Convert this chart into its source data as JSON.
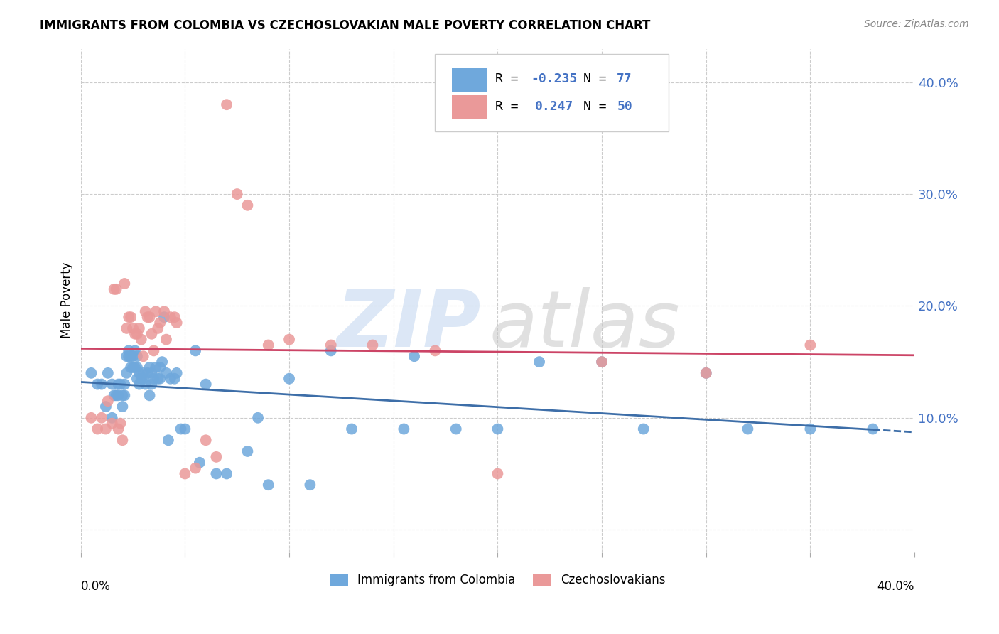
{
  "title": "IMMIGRANTS FROM COLOMBIA VS CZECHOSLOVAKIAN MALE POVERTY CORRELATION CHART",
  "source": "Source: ZipAtlas.com",
  "ylabel": "Male Poverty",
  "yticks": [
    0.0,
    0.1,
    0.2,
    0.3,
    0.4
  ],
  "ytick_labels": [
    "",
    "10.0%",
    "20.0%",
    "30.0%",
    "40.0%"
  ],
  "xlim": [
    0.0,
    0.4
  ],
  "ylim": [
    -0.02,
    0.43
  ],
  "colombia_R": -0.235,
  "colombia_N": 77,
  "czech_R": 0.247,
  "czech_N": 50,
  "colombia_color": "#6fa8dc",
  "czech_color": "#ea9999",
  "colombia_line_color": "#3d6ea8",
  "czech_line_color": "#cc4466",
  "legend_text_color": "#4472c4",
  "right_axis_color": "#4472c4",
  "colombia_points_x": [
    0.005,
    0.008,
    0.01,
    0.012,
    0.013,
    0.015,
    0.015,
    0.016,
    0.017,
    0.018,
    0.018,
    0.019,
    0.02,
    0.02,
    0.021,
    0.021,
    0.022,
    0.022,
    0.023,
    0.023,
    0.024,
    0.024,
    0.025,
    0.025,
    0.026,
    0.026,
    0.027,
    0.027,
    0.027,
    0.028,
    0.028,
    0.029,
    0.03,
    0.03,
    0.031,
    0.032,
    0.033,
    0.033,
    0.034,
    0.034,
    0.035,
    0.036,
    0.037,
    0.038,
    0.038,
    0.039,
    0.04,
    0.041,
    0.042,
    0.043,
    0.045,
    0.046,
    0.048,
    0.05,
    0.055,
    0.057,
    0.06,
    0.065,
    0.07,
    0.08,
    0.085,
    0.09,
    0.1,
    0.11,
    0.12,
    0.13,
    0.155,
    0.16,
    0.18,
    0.2,
    0.22,
    0.25,
    0.27,
    0.3,
    0.32,
    0.35,
    0.38
  ],
  "colombia_points_y": [
    0.14,
    0.13,
    0.13,
    0.11,
    0.14,
    0.1,
    0.13,
    0.12,
    0.12,
    0.13,
    0.12,
    0.13,
    0.12,
    0.11,
    0.12,
    0.13,
    0.155,
    0.14,
    0.16,
    0.155,
    0.155,
    0.145,
    0.155,
    0.145,
    0.16,
    0.145,
    0.145,
    0.155,
    0.135,
    0.14,
    0.13,
    0.135,
    0.14,
    0.135,
    0.13,
    0.14,
    0.145,
    0.12,
    0.14,
    0.13,
    0.135,
    0.145,
    0.135,
    0.145,
    0.135,
    0.15,
    0.19,
    0.14,
    0.08,
    0.135,
    0.135,
    0.14,
    0.09,
    0.09,
    0.16,
    0.06,
    0.13,
    0.05,
    0.05,
    0.07,
    0.1,
    0.04,
    0.135,
    0.04,
    0.16,
    0.09,
    0.09,
    0.155,
    0.09,
    0.09,
    0.15,
    0.15,
    0.09,
    0.14,
    0.09,
    0.09,
    0.09
  ],
  "czech_points_x": [
    0.005,
    0.008,
    0.01,
    0.012,
    0.013,
    0.015,
    0.016,
    0.017,
    0.018,
    0.019,
    0.02,
    0.021,
    0.022,
    0.023,
    0.024,
    0.025,
    0.026,
    0.027,
    0.028,
    0.029,
    0.03,
    0.031,
    0.032,
    0.033,
    0.034,
    0.035,
    0.036,
    0.037,
    0.038,
    0.04,
    0.041,
    0.043,
    0.045,
    0.046,
    0.05,
    0.055,
    0.06,
    0.065,
    0.07,
    0.075,
    0.08,
    0.09,
    0.1,
    0.12,
    0.14,
    0.17,
    0.2,
    0.25,
    0.3,
    0.35
  ],
  "czech_points_y": [
    0.1,
    0.09,
    0.1,
    0.09,
    0.115,
    0.095,
    0.215,
    0.215,
    0.09,
    0.095,
    0.08,
    0.22,
    0.18,
    0.19,
    0.19,
    0.18,
    0.175,
    0.175,
    0.18,
    0.17,
    0.155,
    0.195,
    0.19,
    0.19,
    0.175,
    0.16,
    0.195,
    0.18,
    0.185,
    0.195,
    0.17,
    0.19,
    0.19,
    0.185,
    0.05,
    0.055,
    0.08,
    0.065,
    0.38,
    0.3,
    0.29,
    0.165,
    0.17,
    0.165,
    0.165,
    0.16,
    0.05,
    0.15,
    0.14,
    0.165
  ]
}
